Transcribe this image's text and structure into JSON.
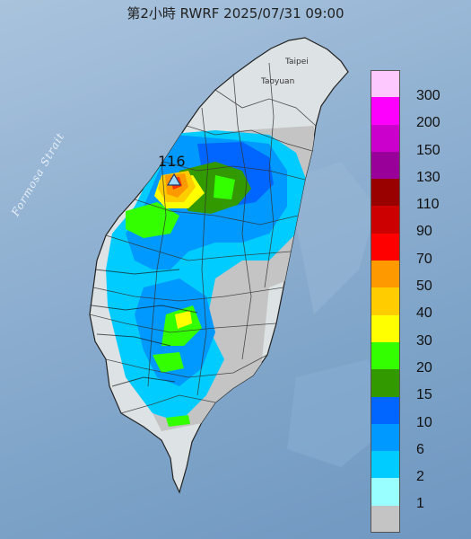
{
  "map": {
    "title": "第2小時  RWRF 2025/07/31 09:00",
    "sea_label": "Formosa Strait",
    "city_labels": [
      "Taipei",
      "Taoyuan"
    ],
    "peak_value": "116",
    "peak_marker_icon": "triangle-icon"
  },
  "legend": {
    "items": [
      {
        "label": "300",
        "color": "#fdc8fd"
      },
      {
        "label": "200",
        "color": "#fd00fd"
      },
      {
        "label": "150",
        "color": "#cc00cc"
      },
      {
        "label": "130",
        "color": "#990099"
      },
      {
        "label": "110",
        "color": "#990000"
      },
      {
        "label": "90",
        "color": "#cc0000"
      },
      {
        "label": "70",
        "color": "#ff0000"
      },
      {
        "label": "50",
        "color": "#ff9900"
      },
      {
        "label": "40",
        "color": "#ffcc00"
      },
      {
        "label": "30",
        "color": "#ffff00"
      },
      {
        "label": "20",
        "color": "#33ff00"
      },
      {
        "label": "15",
        "color": "#339900"
      },
      {
        "label": "10",
        "color": "#0066ff"
      },
      {
        "label": "6",
        "color": "#0099ff"
      },
      {
        "label": "2",
        "color": "#00ccff"
      },
      {
        "label": "1",
        "color": "#99ffff"
      },
      {
        "label": "",
        "color": "#c4c4c4"
      }
    ]
  }
}
